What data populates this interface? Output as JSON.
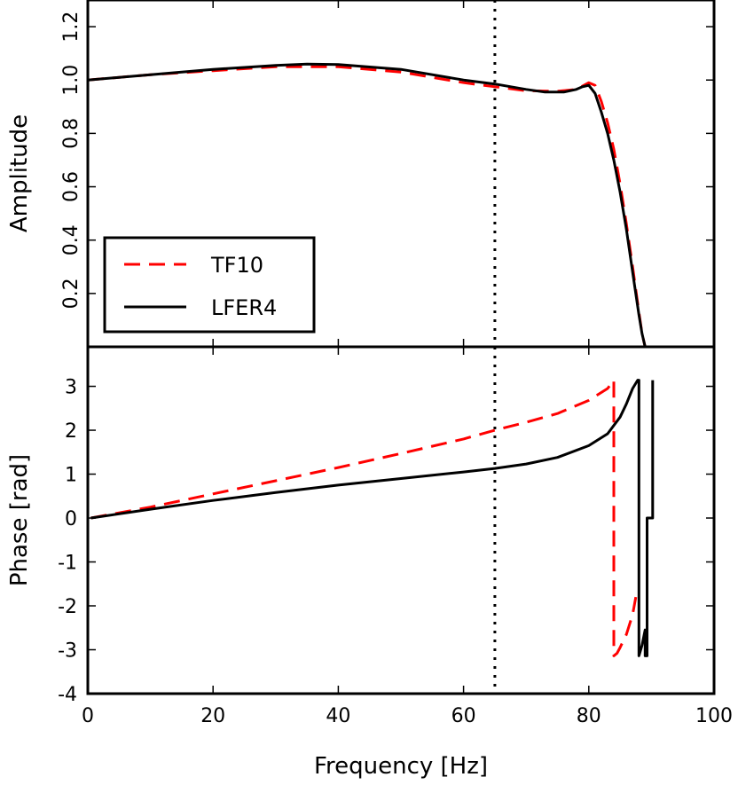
{
  "chart_data": [
    {
      "type": "line",
      "panel": "amplitude",
      "ylabel": "Amplitude",
      "xlim": [
        0,
        100
      ],
      "ylim": [
        0,
        1.3
      ],
      "yticks": [
        0.2,
        0.4,
        0.6,
        0.8,
        1.0,
        1.2
      ],
      "ytick_labels": [
        "0.2",
        "0.4",
        "0.6",
        "0.8",
        "1.0",
        "1.2"
      ],
      "legend": {
        "position": "lower-left",
        "entries": [
          "TF10",
          "LFER4"
        ]
      },
      "series": [
        {
          "name": "TF10",
          "color": "#ff0000",
          "style": "dashed",
          "x": [
            0,
            5,
            10,
            20,
            30,
            40,
            50,
            60,
            65,
            70,
            75,
            78,
            80,
            81,
            82,
            83,
            84,
            85,
            86,
            87,
            88,
            88.5,
            89
          ],
          "y": [
            1.0,
            1.01,
            1.02,
            1.035,
            1.05,
            1.05,
            1.03,
            0.99,
            0.975,
            0.96,
            0.958,
            0.965,
            0.99,
            0.98,
            0.92,
            0.84,
            0.74,
            0.61,
            0.46,
            0.3,
            0.13,
            0.05,
            0.0
          ]
        },
        {
          "name": "LFER4",
          "color": "#000000",
          "style": "solid",
          "x": [
            0,
            5,
            10,
            20,
            30,
            35,
            40,
            50,
            60,
            65,
            70,
            73,
            76,
            78,
            79,
            80,
            81,
            82,
            83,
            84,
            85,
            86,
            87,
            88,
            88.5,
            89
          ],
          "y": [
            1.0,
            1.01,
            1.02,
            1.04,
            1.055,
            1.06,
            1.058,
            1.04,
            1.0,
            0.985,
            0.965,
            0.955,
            0.955,
            0.965,
            0.975,
            0.98,
            0.95,
            0.88,
            0.8,
            0.7,
            0.58,
            0.44,
            0.28,
            0.12,
            0.05,
            0.0
          ]
        }
      ]
    },
    {
      "type": "line",
      "panel": "phase",
      "xlabel": "Frequency [Hz]",
      "ylabel": "Phase [rad]",
      "xlim": [
        0,
        100
      ],
      "ylim": [
        -4,
        3.9
      ],
      "xticks": [
        0,
        20,
        40,
        60,
        80,
        100
      ],
      "xtick_labels": [
        "0",
        "20",
        "40",
        "60",
        "80",
        "100"
      ],
      "yticks": [
        -4,
        -3,
        -2,
        -1,
        0,
        1,
        2,
        3
      ],
      "ytick_labels": [
        "-4",
        "-3",
        "-2",
        "-1",
        "0",
        "1",
        "2",
        "3"
      ],
      "series": [
        {
          "name": "TF10",
          "color": "#ff0000",
          "style": "dashed",
          "x": [
            0.5,
            10,
            20,
            30,
            40,
            50,
            60,
            65,
            70,
            75,
            80,
            83,
            84,
            84,
            84.5,
            85,
            86,
            87,
            87.5
          ],
          "y": [
            0.0,
            0.25,
            0.55,
            0.85,
            1.15,
            1.47,
            1.8,
            2.0,
            2.18,
            2.38,
            2.68,
            2.95,
            3.14,
            -3.14,
            -3.08,
            -2.95,
            -2.65,
            -2.2,
            -1.8
          ]
        },
        {
          "name": "LFER4",
          "color": "#000000",
          "style": "solid",
          "x": [
            0.5,
            10,
            20,
            30,
            40,
            50,
            60,
            65,
            70,
            75,
            80,
            83,
            85,
            86,
            87,
            87.8,
            88,
            88,
            88.5,
            89,
            89,
            89.3,
            89.3,
            89.8,
            90.2,
            90.2
          ],
          "y": [
            0.0,
            0.2,
            0.4,
            0.58,
            0.75,
            0.9,
            1.05,
            1.13,
            1.23,
            1.38,
            1.65,
            1.92,
            2.3,
            2.6,
            2.95,
            3.14,
            3.14,
            -3.14,
            -2.9,
            -2.55,
            -3.14,
            -3.14,
            0.0,
            0.0,
            0.0,
            3.14
          ]
        }
      ]
    }
  ],
  "marker_line": {
    "x": 65,
    "style": "dotted",
    "color": "#000000"
  }
}
